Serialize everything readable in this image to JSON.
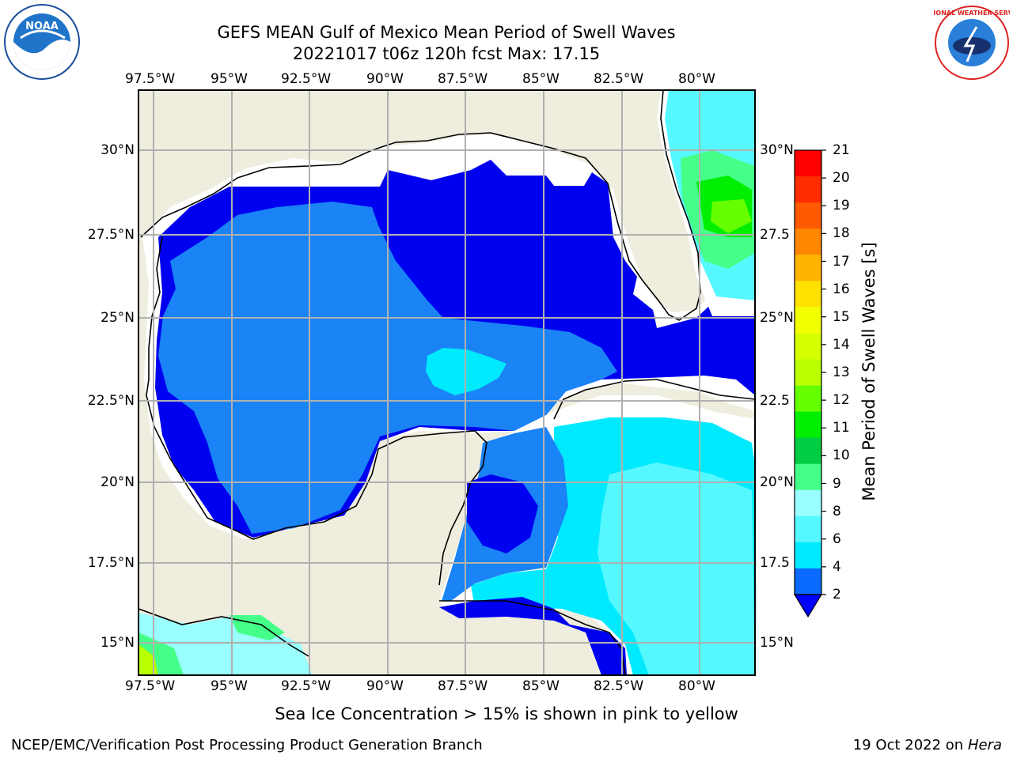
{
  "header": {
    "title_line1": "GEFS MEAN Gulf of Mexico Mean Period of Swell Waves",
    "title_line2": "20221017 t06z 120h fcst   Max: 17.15"
  },
  "logos": {
    "left": {
      "name": "noaa-logo",
      "text": "NOAA"
    },
    "right": {
      "name": "nws-logo",
      "text": "NATIONAL WEATHER SERVICE"
    }
  },
  "map": {
    "lon_labels": [
      "97.5°W",
      "95°W",
      "92.5°W",
      "90°W",
      "87.5°W",
      "85°W",
      "82.5°W",
      "80°W"
    ],
    "lat_labels_left": [
      "30°N",
      "27.5°N",
      "25°N",
      "22.5°N",
      "20°N",
      "17.5°N",
      "15°N"
    ],
    "lat_labels_right": [
      "30°N",
      "27.5",
      "25°N",
      "22.5",
      "20°N",
      "17.5",
      "15°N"
    ],
    "colors": {
      "land": "#efedde",
      "ocean_dark": "#0000f0",
      "ocean_mid": "#1a83f5",
      "ocean_cyan": "#00eeff",
      "grid": "#b0b0b0"
    }
  },
  "colorbar": {
    "label": "Mean Period of Swell Waves [s]",
    "ticks": [
      "21",
      "20",
      "19",
      "18",
      "17",
      "16",
      "15",
      "14",
      "13",
      "12",
      "11",
      "10",
      "9",
      "8",
      "6",
      "4",
      "2"
    ],
    "colors": [
      "#ff0000",
      "#ff2d00",
      "#ff5a00",
      "#ff8700",
      "#ffb400",
      "#ffe100",
      "#f2ff00",
      "#d6ff00",
      "#baff00",
      "#66ff00",
      "#00ee00",
      "#00cc44",
      "#44ff88",
      "#99ffff",
      "#55f8ff",
      "#00eaff",
      "#0a6aff"
    ],
    "extend_color": "#0000ff"
  },
  "notes": {
    "sea_ice": "Sea Ice Concentration > 15% is shown in pink to yellow",
    "credit": "NCEP/EMC/Verification Post Processing Product Generation Branch",
    "date_prefix": "19 Oct 2022 on ",
    "host": "Hera"
  }
}
